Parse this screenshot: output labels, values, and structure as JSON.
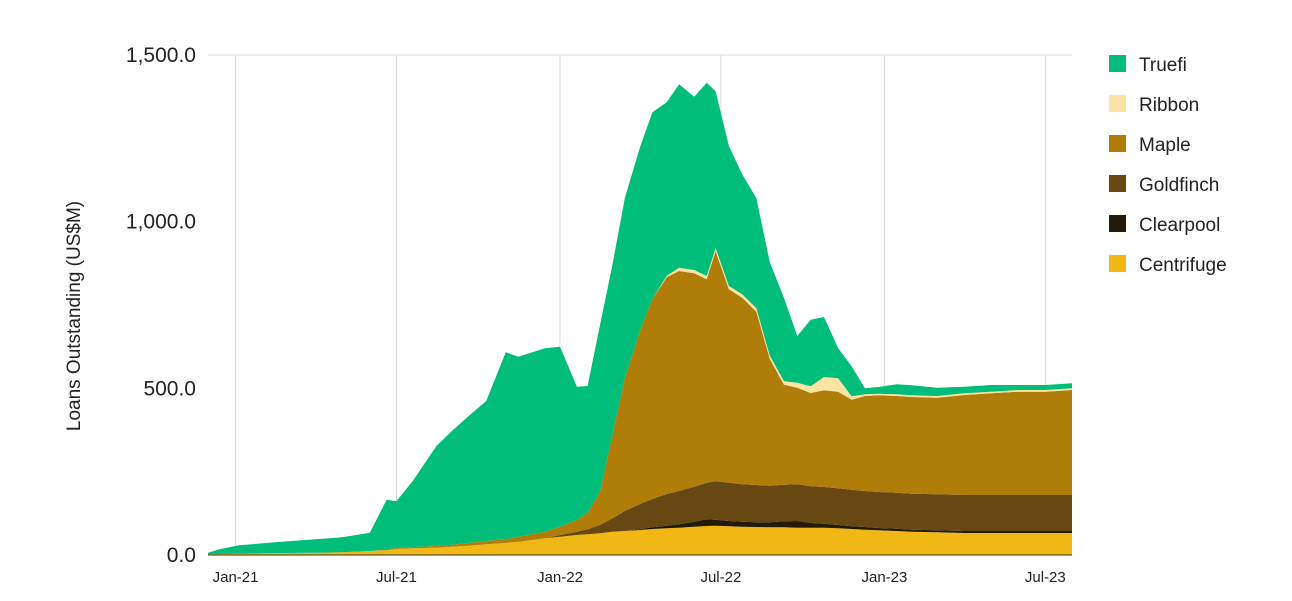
{
  "chart_data": {
    "type": "area",
    "stacked": true,
    "title": "",
    "xlabel": "",
    "ylabel": "Loans Outstanding (US$M)",
    "ylim": [
      0,
      1500
    ],
    "y_ticks": [
      "0.0",
      "500.0",
      "1,000.0",
      "1,500.0"
    ],
    "y_tick_values": [
      0,
      500,
      1000,
      1500
    ],
    "x_range": [
      "2020-12-01",
      "2023-07-31"
    ],
    "x_ticks": [
      {
        "date": "2021-01-01",
        "label": "Jan-21"
      },
      {
        "date": "2021-07-01",
        "label": "Jul-21"
      },
      {
        "date": "2022-01-01",
        "label": "Jan-22"
      },
      {
        "date": "2022-07-01",
        "label": "Jul-22"
      },
      {
        "date": "2023-01-01",
        "label": "Jan-23"
      },
      {
        "date": "2023-07-01",
        "label": "Jul-23"
      }
    ],
    "grid": "vertical",
    "legend_position": "right",
    "x": [
      "2020-12-01",
      "2020-12-15",
      "2021-01-05",
      "2021-02-01",
      "2021-03-01",
      "2021-04-01",
      "2021-05-01",
      "2021-06-01",
      "2021-06-20",
      "2021-07-01",
      "2021-07-20",
      "2021-08-15",
      "2021-09-01",
      "2021-09-20",
      "2021-10-10",
      "2021-11-01",
      "2021-11-15",
      "2021-12-01",
      "2021-12-15",
      "2022-01-01",
      "2022-01-20",
      "2022-02-01",
      "2022-02-15",
      "2022-03-01",
      "2022-03-15",
      "2022-04-01",
      "2022-04-15",
      "2022-05-01",
      "2022-05-15",
      "2022-06-01",
      "2022-06-15",
      "2022-06-25",
      "2022-07-10",
      "2022-07-25",
      "2022-08-10",
      "2022-08-25",
      "2022-09-10",
      "2022-09-25",
      "2022-10-10",
      "2022-10-25",
      "2022-11-10",
      "2022-11-25",
      "2022-12-10",
      "2022-12-25",
      "2023-01-15",
      "2023-02-01",
      "2023-03-01",
      "2023-04-01",
      "2023-05-01",
      "2023-06-01",
      "2023-07-01",
      "2023-07-31"
    ],
    "series": [
      {
        "name": "Centrifuge",
        "color": "#F1B715",
        "values": [
          2,
          3,
          4,
          5,
          6,
          7,
          8,
          12,
          14,
          18,
          20,
          22,
          25,
          28,
          32,
          36,
          40,
          45,
          50,
          55,
          60,
          62,
          65,
          70,
          72,
          75,
          78,
          80,
          82,
          85,
          87,
          88,
          86,
          85,
          84,
          83,
          83,
          82,
          82,
          82,
          80,
          78,
          76,
          74,
          72,
          70,
          68,
          66,
          66,
          66,
          66,
          66
        ]
      },
      {
        "name": "Clearpool",
        "color": "#231A07",
        "values": [
          0,
          0,
          0,
          0,
          0,
          0,
          0,
          0,
          0,
          0,
          0,
          0,
          0,
          0,
          0,
          0,
          0,
          0,
          0,
          0,
          0,
          0,
          0,
          0,
          0,
          3,
          5,
          8,
          10,
          15,
          20,
          18,
          16,
          15,
          14,
          15,
          18,
          20,
          14,
          12,
          10,
          8,
          8,
          7,
          7,
          6,
          6,
          6,
          6,
          6,
          6,
          6
        ]
      },
      {
        "name": "Goldfinch",
        "color": "#674812",
        "values": [
          0,
          0,
          0,
          0,
          0,
          0,
          0,
          0,
          0,
          0,
          0,
          0,
          0,
          0,
          0,
          0,
          0,
          0,
          0,
          5,
          10,
          15,
          25,
          40,
          60,
          75,
          85,
          95,
          100,
          105,
          110,
          115,
          115,
          112,
          112,
          110,
          110,
          110,
          110,
          110,
          110,
          110,
          108,
          108,
          108,
          108,
          108,
          108,
          108,
          108,
          108,
          108
        ]
      },
      {
        "name": "Maple",
        "color": "#B07D08",
        "values": [
          0,
          0,
          0,
          0,
          0,
          0,
          0,
          0,
          2,
          3,
          4,
          5,
          6,
          8,
          10,
          12,
          15,
          18,
          20,
          25,
          35,
          50,
          100,
          250,
          400,
          520,
          600,
          650,
          660,
          640,
          610,
          690,
          580,
          560,
          520,
          380,
          300,
          290,
          280,
          290,
          290,
          270,
          285,
          290,
          290,
          290,
          290,
          300,
          305,
          310,
          310,
          315
        ]
      },
      {
        "name": "Ribbon",
        "color": "#FAE3A3",
        "values": [
          0,
          0,
          0,
          0,
          0,
          0,
          0,
          0,
          0,
          0,
          0,
          0,
          0,
          0,
          0,
          0,
          0,
          0,
          0,
          0,
          0,
          0,
          0,
          0,
          0,
          0,
          0,
          5,
          10,
          10,
          10,
          10,
          10,
          10,
          10,
          10,
          10,
          15,
          20,
          40,
          40,
          10,
          5,
          5,
          5,
          5,
          5,
          5,
          5,
          5,
          5,
          5
        ]
      },
      {
        "name": "Truefi",
        "color": "#00BD79",
        "values": [
          5,
          15,
          25,
          30,
          35,
          40,
          45,
          55,
          150,
          140,
          200,
          300,
          340,
          380,
          420,
          560,
          540,
          545,
          550,
          540,
          400,
          380,
          500,
          510,
          540,
          550,
          560,
          520,
          550,
          520,
          580,
          470,
          420,
          360,
          330,
          280,
          250,
          140,
          200,
          180,
          90,
          90,
          18,
          20,
          30,
          30,
          25,
          20,
          20,
          15,
          15,
          15
        ]
      }
    ]
  }
}
